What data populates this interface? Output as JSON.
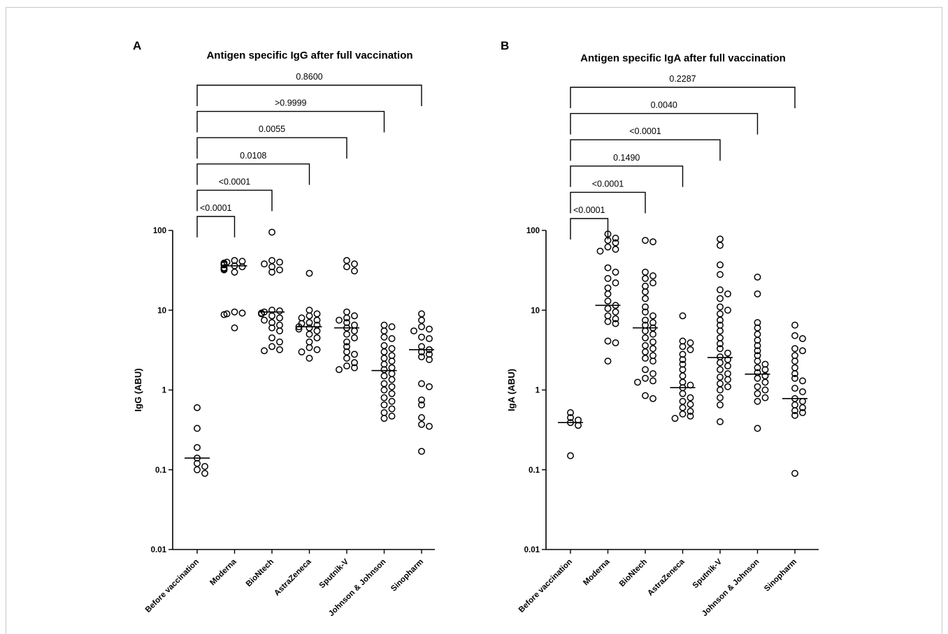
{
  "chart_data": [
    {
      "type": "scatter",
      "panel_label": "A",
      "title": "Antigen specific IgG after full vaccination",
      "ylabel": "IgG (ABU)",
      "yscale": "log",
      "ylim": [
        0.01,
        100
      ],
      "yticks": [
        "0.01",
        "0.1",
        "1",
        "10",
        "100"
      ],
      "categories": [
        "Before vaccination",
        "Moderna",
        "BioNtech",
        "AstraZeneca",
        "Sputnik-V",
        "Johnson & Johnson",
        "Sinopharm"
      ],
      "medians": [
        0.14,
        36,
        9.5,
        6.2,
        6.0,
        1.75,
        3.2
      ],
      "points": [
        [
          0.6,
          0.33,
          0.19,
          0.14,
          0.12,
          0.11,
          0.1,
          0.09
        ],
        [
          42,
          41,
          40,
          39,
          38,
          37,
          36,
          35,
          34,
          33,
          32,
          30,
          9.5,
          9.2,
          9.0,
          8.8,
          6.0
        ],
        [
          95,
          42,
          40,
          38,
          35,
          32,
          30,
          10,
          9.8,
          9.5,
          9.2,
          9,
          8.5,
          8,
          7.5,
          7,
          6.5,
          6,
          5.5,
          4.5,
          4,
          3.5,
          3.2,
          3.1
        ],
        [
          29,
          10,
          9,
          8.5,
          8,
          7.5,
          7,
          6.8,
          6.5,
          6.2,
          6,
          5.8,
          5.5,
          5,
          4.5,
          4,
          3.4,
          3.2,
          3,
          2.5
        ],
        [
          42,
          38,
          35,
          31,
          9.5,
          8.5,
          8,
          7.5,
          7,
          6.5,
          6,
          5.5,
          5,
          4.5,
          4,
          3.5,
          3,
          2.8,
          2.5,
          2.2,
          2,
          1.9,
          1.8
        ],
        [
          6.5,
          6.2,
          5.5,
          4.6,
          4.4,
          3.6,
          3.3,
          3,
          2.7,
          2.5,
          2.3,
          2.1,
          1.9,
          1.8,
          1.6,
          1.5,
          1.35,
          1.2,
          1.1,
          1,
          0.9,
          0.8,
          0.72,
          0.65,
          0.58,
          0.52,
          0.47,
          0.44
        ],
        [
          9,
          7.5,
          6.2,
          5.8,
          5.5,
          4.6,
          4.4,
          3.5,
          3.2,
          3.0,
          2.8,
          2.6,
          2.4,
          1.2,
          1.1,
          0.75,
          0.65,
          0.45,
          0.37,
          0.35,
          0.17
        ]
      ],
      "comparisons": [
        {
          "group": 1,
          "p": "<0.0001"
        },
        {
          "group": 2,
          "p": "<0.0001"
        },
        {
          "group": 3,
          "p": "0.0108"
        },
        {
          "group": 4,
          "p": "0.0055"
        },
        {
          "group": 5,
          "p": ">0.9999"
        },
        {
          "group": 6,
          "p": "0.8600"
        }
      ]
    },
    {
      "type": "scatter",
      "panel_label": "B",
      "title": "Antigen specific IgA after full vaccination",
      "ylabel": "IgA (ABU)",
      "yscale": "log",
      "ylim": [
        0.01,
        100
      ],
      "yticks": [
        "0.01",
        "0.1",
        "1",
        "10",
        "100"
      ],
      "categories": [
        "Before vaccination",
        "Moderna",
        "BioNtech",
        "AstraZeneca",
        "Sputnik-V",
        "Johnson & Johnson",
        "Sinopharm"
      ],
      "medians": [
        0.39,
        11.5,
        6.0,
        1.07,
        2.55,
        1.58,
        0.78
      ],
      "points": [
        [
          0.52,
          0.45,
          0.42,
          0.39,
          0.36,
          0.15
        ],
        [
          90,
          80,
          75,
          70,
          62,
          58,
          55,
          34,
          30,
          25,
          22,
          19,
          16,
          13,
          11.5,
          10.5,
          9.5,
          8.5,
          7.8,
          7.2,
          6.8,
          4.1,
          3.9,
          2.3
        ],
        [
          75,
          72,
          30,
          27,
          25,
          22,
          20,
          17,
          14,
          11,
          9.5,
          8.5,
          7.5,
          7,
          6.5,
          6,
          5.5,
          5,
          4.5,
          4,
          3.6,
          3.3,
          3.0,
          2.7,
          2.5,
          2.3,
          1.8,
          1.6,
          1.4,
          1.3,
          1.25,
          0.85,
          0.78
        ],
        [
          8.5,
          4.1,
          3.9,
          3.5,
          3.2,
          2.8,
          2.4,
          2.1,
          1.8,
          1.5,
          1.25,
          1.15,
          1.07,
          0.9,
          0.8,
          0.72,
          0.66,
          0.6,
          0.54,
          0.5,
          0.47,
          0.44
        ],
        [
          78,
          65,
          37,
          28,
          18,
          16,
          14,
          11,
          10,
          9,
          7.5,
          6.5,
          5.5,
          4.5,
          3.8,
          3.3,
          2.9,
          2.6,
          2.4,
          2.2,
          2.0,
          1.8,
          1.6,
          1.45,
          1.35,
          1.2,
          1.1,
          1.0,
          0.8,
          0.65,
          0.4
        ],
        [
          26,
          16,
          7,
          6,
          5,
          4.2,
          3.6,
          3.1,
          2.7,
          2.3,
          2.1,
          1.9,
          1.8,
          1.65,
          1.5,
          1.4,
          1.25,
          1.1,
          1.0,
          0.9,
          0.8,
          0.72,
          0.33
        ],
        [
          6.5,
          4.8,
          4.4,
          3.3,
          3.1,
          2.7,
          2.3,
          1.9,
          1.6,
          1.4,
          1.3,
          1.05,
          0.95,
          0.78,
          0.72,
          0.65,
          0.6,
          0.55,
          0.52,
          0.48,
          0.09
        ]
      ],
      "comparisons": [
        {
          "group": 1,
          "p": "<0.0001"
        },
        {
          "group": 2,
          "p": "<0.0001"
        },
        {
          "group": 3,
          "p": "0.1490"
        },
        {
          "group": 4,
          "p": "<0.0001"
        },
        {
          "group": 5,
          "p": "0.0040"
        },
        {
          "group": 6,
          "p": "0.2287"
        }
      ]
    }
  ]
}
